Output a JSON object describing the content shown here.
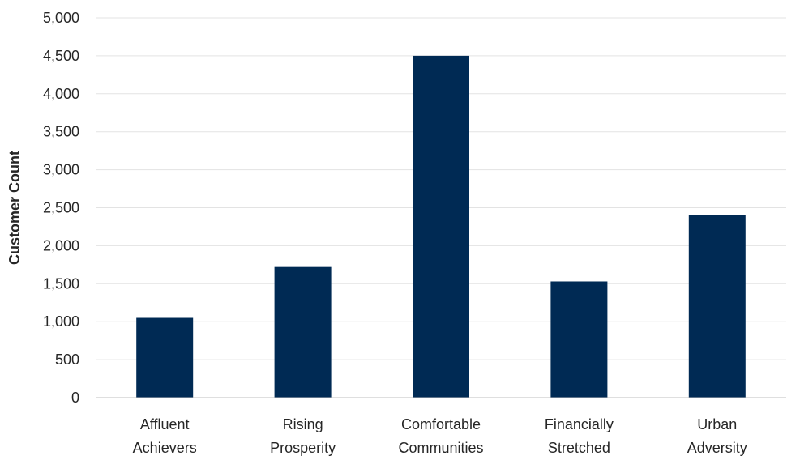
{
  "chart_data": {
    "type": "bar",
    "title": "",
    "xlabel": "",
    "ylabel": "Customer Count",
    "categories": [
      [
        "Affluent",
        "Achievers"
      ],
      [
        "Rising",
        "Prosperity"
      ],
      [
        "Comfortable",
        "Communities"
      ],
      [
        "Financially",
        "Stretched"
      ],
      [
        "Urban",
        "Adversity"
      ]
    ],
    "values": [
      1050,
      1720,
      4500,
      1530,
      2400
    ],
    "ylim": [
      0,
      5000
    ],
    "ytick_step": 500,
    "yticks": [
      "0",
      "500",
      "1,000",
      "1,500",
      "2,000",
      "2,500",
      "3,000",
      "3,500",
      "4,000",
      "4,500",
      "5,000"
    ],
    "grid": true,
    "legend": "none",
    "colors": {
      "bar": "#002a54",
      "grid": "#e3e3e3",
      "axis": "#bfbfbf"
    }
  }
}
